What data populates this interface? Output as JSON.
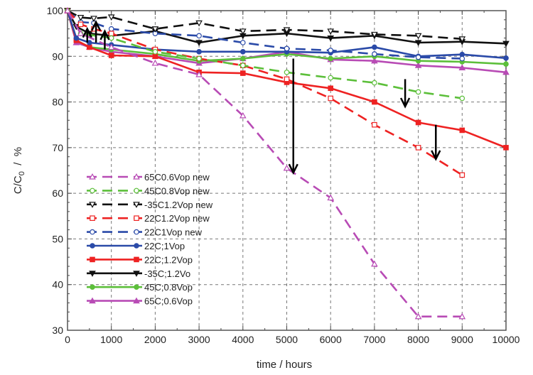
{
  "chart_data": {
    "type": "line",
    "title": "",
    "xlabel": "time  / hours",
    "ylabel": {
      "main": "C/C",
      "sub": "0",
      "rest": "  /  %"
    },
    "xlim": [
      0,
      10000
    ],
    "ylim": [
      30,
      100
    ],
    "xticks": [
      0,
      1000,
      2000,
      3000,
      4000,
      5000,
      6000,
      7000,
      8000,
      9000,
      10000
    ],
    "yticks": [
      30,
      40,
      50,
      60,
      70,
      80,
      90,
      100
    ],
    "grid": true,
    "legend_placement": "lower-left",
    "series": [
      {
        "name": "65C0.6Vop new",
        "color": "#b84bb5",
        "dash": true,
        "marker": "open-triangle",
        "x": [
          0,
          300,
          1000,
          2000,
          3000,
          4000,
          5000,
          6000,
          7000,
          8000,
          9000
        ],
        "y": [
          100,
          95,
          92,
          88.5,
          86,
          77,
          65.5,
          59,
          44.5,
          33,
          33
        ]
      },
      {
        "name": "45C0.8Vop new",
        "color": "#5cbf3a",
        "dash": true,
        "marker": "open-circle",
        "x": [
          0,
          300,
          1000,
          2000,
          3000,
          4000,
          5000,
          6000,
          7000,
          8000,
          9000
        ],
        "y": [
          100,
          95,
          94,
          91,
          89.5,
          88,
          86.5,
          85.3,
          84.2,
          82.2,
          80.8
        ]
      },
      {
        "name": "-35C1.2Vop new",
        "color": "#111111",
        "dash": true,
        "marker": "open-down-triangle",
        "x": [
          0,
          300,
          600,
          1000,
          2000,
          3000,
          4000,
          5000,
          6000,
          7000,
          8000,
          9000
        ],
        "y": [
          100,
          98.5,
          98.3,
          98.6,
          96,
          97.3,
          95.5,
          95.8,
          95.5,
          94.8,
          94.5,
          93.8
        ]
      },
      {
        "name": "22C1.2Vop new",
        "color": "#ee2222",
        "dash": true,
        "marker": "open-square",
        "x": [
          0,
          300,
          600,
          1000,
          2000,
          3000,
          4000,
          5000,
          6000,
          7000,
          8000,
          9000
        ],
        "y": [
          100,
          97,
          96,
          95,
          91.5,
          89.5,
          88,
          85,
          80.8,
          75,
          70,
          64
        ]
      },
      {
        "name": "22C1Vop new",
        "color": "#2a4aa8",
        "dash": true,
        "marker": "open-circle",
        "x": [
          0,
          300,
          600,
          1000,
          2000,
          3000,
          4000,
          5000,
          6000,
          7000,
          8000,
          9000
        ],
        "y": [
          100,
          97.5,
          97.3,
          96,
          95,
          94.5,
          93,
          91.7,
          91.3,
          90.5,
          89.8,
          89.5
        ]
      },
      {
        "name": "22C;1Vop",
        "color": "#2a4aa8",
        "dash": false,
        "marker": "filled-circle",
        "x": [
          0,
          200,
          500,
          1000,
          2000,
          3000,
          4000,
          5000,
          6000,
          7000,
          8000,
          9000,
          10000
        ],
        "y": [
          100,
          94,
          93,
          92.5,
          91.5,
          91,
          91,
          91,
          90.8,
          92,
          90,
          90.4,
          89.6
        ]
      },
      {
        "name": "22C;1.2Vop",
        "color": "#ee2222",
        "dash": false,
        "marker": "filled-square",
        "x": [
          0,
          200,
          500,
          1000,
          2000,
          3000,
          4000,
          5000,
          6000,
          7000,
          8000,
          9000,
          10000
        ],
        "y": [
          100,
          93.5,
          92,
          90.2,
          90,
          86.5,
          86.3,
          84.3,
          83,
          80,
          75.5,
          73.8,
          70
        ]
      },
      {
        "name": "-35C;1.2Vo",
        "color": "#111111",
        "dash": false,
        "marker": "filled-down-triangle",
        "x": [
          0,
          200,
          500,
          1000,
          2000,
          3000,
          4000,
          5000,
          6000,
          7000,
          8000,
          9000,
          10000
        ],
        "y": [
          100,
          96.5,
          95,
          94.5,
          95.5,
          93,
          94.5,
          95,
          94,
          94.5,
          93,
          93.2,
          92.8
        ]
      },
      {
        "name": "45C;0.8Vop",
        "color": "#5cbf3a",
        "dash": false,
        "marker": "filled-circle",
        "x": [
          0,
          200,
          500,
          1000,
          2000,
          3000,
          4000,
          5000,
          6000,
          7000,
          8000,
          9000,
          10000
        ],
        "y": [
          100,
          93.5,
          92,
          91.5,
          90.5,
          89,
          89.5,
          90.5,
          89.5,
          90,
          89,
          88.8,
          88.3
        ]
      },
      {
        "name": "65C;0.6Vop",
        "color": "#b84bb5",
        "dash": false,
        "marker": "filled-triangle",
        "x": [
          0,
          200,
          500,
          1000,
          2000,
          3000,
          4000,
          5000,
          6000,
          7000,
          8000,
          9000,
          10000
        ],
        "y": [
          100,
          93,
          92,
          91,
          90,
          88.5,
          89.5,
          91,
          89.3,
          89,
          88,
          87.5,
          86.5
        ]
      }
    ],
    "annotations": [
      {
        "type": "arrow-down",
        "x": 5150,
        "from": 89.5,
        "to": 64.5
      },
      {
        "type": "arrow-down",
        "x": 7700,
        "from": 85,
        "to": 79
      },
      {
        "type": "arrow-down",
        "x": 8400,
        "from": 75,
        "to": 67.5
      },
      {
        "type": "arrow-up",
        "x": 450,
        "from": 93,
        "to": 96
      },
      {
        "type": "arrow-up",
        "x": 650,
        "from": 93,
        "to": 97.5
      },
      {
        "type": "arrow-up",
        "x": 850,
        "from": 91.5,
        "to": 95.5
      }
    ]
  }
}
